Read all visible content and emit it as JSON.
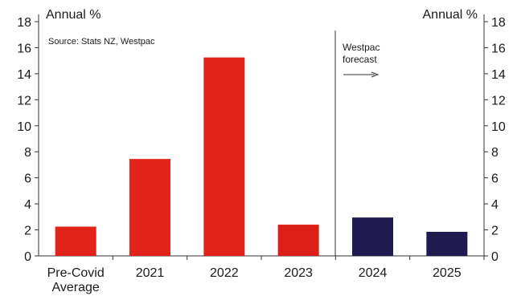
{
  "chart_data": {
    "type": "bar",
    "categories": [
      "Pre-Covid Average",
      "2021",
      "2022",
      "2023",
      "2024",
      "2025"
    ],
    "category_lines": [
      [
        "Pre-Covid",
        "Average"
      ],
      [
        "2021"
      ],
      [
        "2022"
      ],
      [
        "2023"
      ],
      [
        "2024"
      ],
      [
        "2025"
      ]
    ],
    "values": [
      2.25,
      7.45,
      15.25,
      2.4,
      2.95,
      1.85
    ],
    "bar_colors": [
      "#e2231a",
      "#e2231a",
      "#e2231a",
      "#dc1f18",
      "#1f1a4f",
      "#1f1a4f"
    ],
    "ylim": [
      0,
      18
    ],
    "yticks": [
      0,
      2,
      4,
      6,
      8,
      10,
      12,
      14,
      16,
      18
    ],
    "ylabel_left": "Annual %",
    "ylabel_right": "Annual %",
    "source": "Source: Stats NZ, Westpac",
    "annotation": {
      "lines": [
        "Westpac",
        "forecast"
      ],
      "divider_after_category": 3
    },
    "grid": false,
    "legend": "none"
  }
}
